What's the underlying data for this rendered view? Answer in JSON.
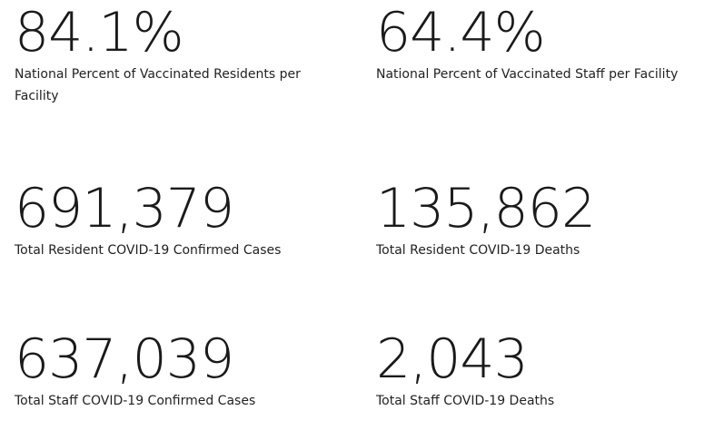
{
  "stats": [
    {
      "value": "84.1%",
      "label": "National Percent of Vaccinated Residents per Facility"
    },
    {
      "value": "64.4%",
      "label": "National Percent of Vaccinated Staff per Facility"
    },
    {
      "value": "691,379",
      "label": "Total Resident COVID-19 Confirmed Cases"
    },
    {
      "value": "135,862",
      "label": "Total Resident COVID-19 Deaths"
    },
    {
      "value": "637,039",
      "label": "Total Staff COVID-19 Confirmed Cases"
    },
    {
      "value": "2,043",
      "label": "Total Staff COVID-19 Deaths"
    }
  ]
}
